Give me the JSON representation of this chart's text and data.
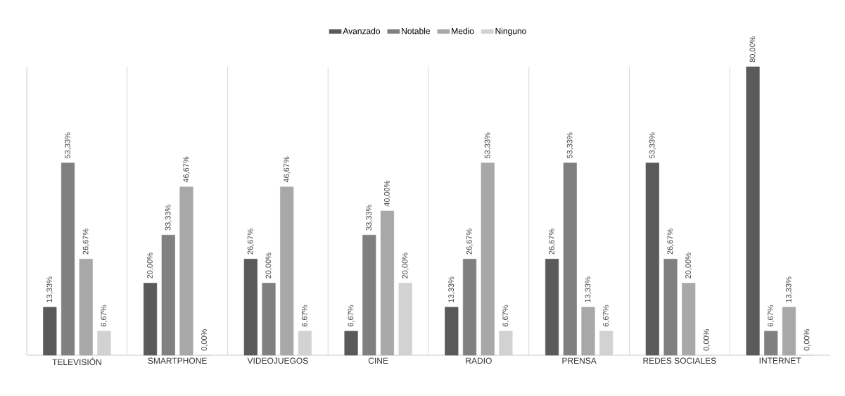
{
  "chart_data": {
    "type": "bar",
    "categories": [
      "TELEVISIÓN",
      "SMARTPHONE",
      "VIDEOJUEGOS",
      "CINE",
      "RADIO",
      "PRENSA",
      "REDES SOCIALES",
      "INTERNET"
    ],
    "series": [
      {
        "name": "Avanzado",
        "color": "#5a5a5a",
        "values": [
          13.33,
          20.0,
          26.67,
          6.67,
          13.33,
          26.67,
          53.33,
          80.0
        ],
        "value_labels": [
          "13,33%",
          "20,00%",
          "26,67%",
          "6,67%",
          "13,33%",
          "26,67%",
          "53,33%",
          "80,00%"
        ]
      },
      {
        "name": "Notable",
        "color": "#808080",
        "values": [
          53.33,
          33.33,
          20.0,
          33.33,
          26.67,
          53.33,
          26.67,
          6.67
        ],
        "value_labels": [
          "53,33%",
          "33,33%",
          "20,00%",
          "33,33%",
          "26,67%",
          "53,33%",
          "26,67%",
          "6,67%"
        ]
      },
      {
        "name": "Medio",
        "color": "#a8a8a8",
        "values": [
          26.67,
          46.67,
          46.67,
          40.0,
          53.33,
          13.33,
          20.0,
          13.33
        ],
        "value_labels": [
          "26,67%",
          "46,67%",
          "46,67%",
          "40,00%",
          "53,33%",
          "13,33%",
          "20,00%",
          "13,33%"
        ]
      },
      {
        "name": "Ninguno",
        "color": "#d2d2d2",
        "values": [
          6.67,
          0.0,
          6.67,
          20.0,
          6.67,
          6.67,
          0.0,
          0.0
        ],
        "value_labels": [
          "6,67%",
          "0,00%",
          "6,67%",
          "20,00%",
          "6,67%",
          "6,67%",
          "0,00%",
          "0,00%"
        ]
      }
    ],
    "grid": "x",
    "legend": "top"
  }
}
